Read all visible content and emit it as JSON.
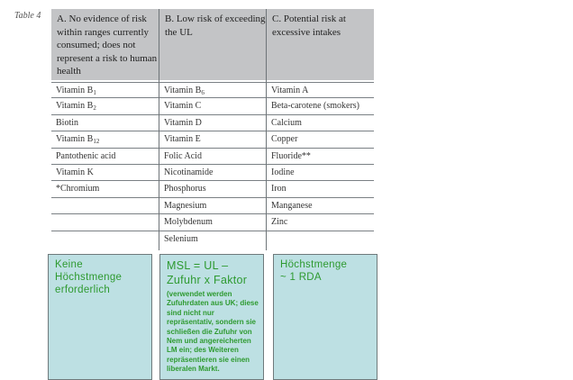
{
  "table_label": "Table 4",
  "headers": [
    "A. No evidence of risk within ranges currently consumed; does not represent a risk to human health",
    "B. Low risk of exceeding the UL",
    "C. Potential risk at excessive intakes"
  ],
  "rows": [
    [
      {
        "t": "Vitamin B",
        "s": "1"
      },
      {
        "t": "Vitamin B",
        "s": "6"
      },
      {
        "t": "Vitamin A",
        "s": ""
      }
    ],
    [
      {
        "t": "Vitamin B",
        "s": "2"
      },
      {
        "t": "Vitamin C",
        "s": ""
      },
      {
        "t": "Beta-carotene (smokers)",
        "s": ""
      }
    ],
    [
      {
        "t": "Biotin",
        "s": ""
      },
      {
        "t": "Vitamin D",
        "s": ""
      },
      {
        "t": "Calcium",
        "s": ""
      }
    ],
    [
      {
        "t": "Vitamin B",
        "s": "12"
      },
      {
        "t": "Vitamin E",
        "s": ""
      },
      {
        "t": "Copper",
        "s": ""
      }
    ],
    [
      {
        "t": "Pantothenic acid",
        "s": ""
      },
      {
        "t": "Folic Acid",
        "s": ""
      },
      {
        "t": "Fluoride**",
        "s": ""
      }
    ],
    [
      {
        "t": "Vitamin K",
        "s": ""
      },
      {
        "t": "Nicotinamide",
        "s": ""
      },
      {
        "t": "Iodine",
        "s": ""
      }
    ],
    [
      {
        "t": "*Chromium",
        "s": ""
      },
      {
        "t": "Phosphorus",
        "s": ""
      },
      {
        "t": "Iron",
        "s": ""
      }
    ],
    [
      {
        "t": "",
        "s": ""
      },
      {
        "t": "Magnesium",
        "s": ""
      },
      {
        "t": "Manganese",
        "s": ""
      }
    ],
    [
      {
        "t": "",
        "s": ""
      },
      {
        "t": "Molybdenum",
        "s": ""
      },
      {
        "t": "Zinc",
        "s": ""
      }
    ],
    [
      {
        "t": "",
        "s": ""
      },
      {
        "t": "Selenium",
        "s": ""
      },
      {
        "t": "",
        "s": ""
      }
    ]
  ],
  "boxes": {
    "a": "Keine Höchstmenge erforderlich",
    "b_formula_1": "MSL = UL –",
    "b_formula_2": "Zufuhr x Faktor",
    "b_note": "(verwendet werden Zufuhrdaten aus UK; diese sind nicht nur repräsentativ, sondern sie schließen die Zufuhr von Nem und angereicherten LM ein; des Weiteren repräsentieren sie einen liberalen Markt.",
    "c_1": "Höchstmenge",
    "c_2": "~ 1 RDA"
  },
  "colors": {
    "box_bg": "#bde0e3",
    "box_text": "#2e9a30",
    "header_bg": "#c3c4c6"
  }
}
